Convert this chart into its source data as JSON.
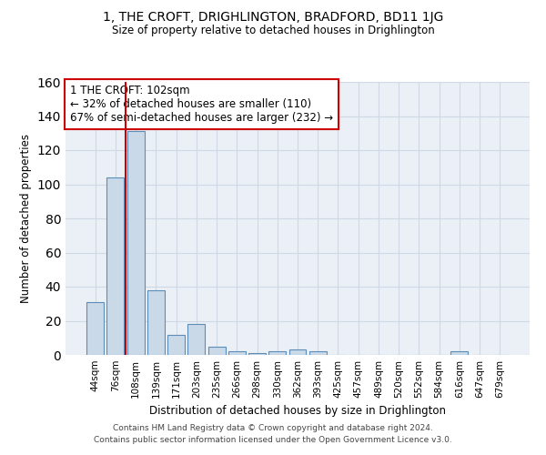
{
  "title": "1, THE CROFT, DRIGHLINGTON, BRADFORD, BD11 1JG",
  "subtitle": "Size of property relative to detached houses in Drighlington",
  "xlabel": "Distribution of detached houses by size in Drighlington",
  "ylabel": "Number of detached properties",
  "bar_labels": [
    "44sqm",
    "76sqm",
    "108sqm",
    "139sqm",
    "171sqm",
    "203sqm",
    "235sqm",
    "266sqm",
    "298sqm",
    "330sqm",
    "362sqm",
    "393sqm",
    "425sqm",
    "457sqm",
    "489sqm",
    "520sqm",
    "552sqm",
    "584sqm",
    "616sqm",
    "647sqm",
    "679sqm"
  ],
  "bar_values": [
    31,
    104,
    131,
    38,
    12,
    18,
    5,
    2,
    1,
    2,
    3,
    2,
    0,
    0,
    0,
    0,
    0,
    0,
    2,
    0,
    0
  ],
  "bar_color": "#c9d9e8",
  "bar_edge_color": "#5b8db8",
  "grid_color": "#d0d8e4",
  "background_color": "#eaf0f6",
  "vline_color": "#cc0000",
  "annotation_text": "1 THE CROFT: 102sqm\n← 32% of detached houses are smaller (110)\n67% of semi-detached houses are larger (232) →",
  "annotation_box_color": "#ffffff",
  "annotation_box_edge": "#cc0000",
  "ylim": [
    0,
    160
  ],
  "yticks": [
    0,
    20,
    40,
    60,
    80,
    100,
    120,
    140,
    160
  ],
  "footer_line1": "Contains HM Land Registry data © Crown copyright and database right 2024.",
  "footer_line2": "Contains public sector information licensed under the Open Government Licence v3.0."
}
